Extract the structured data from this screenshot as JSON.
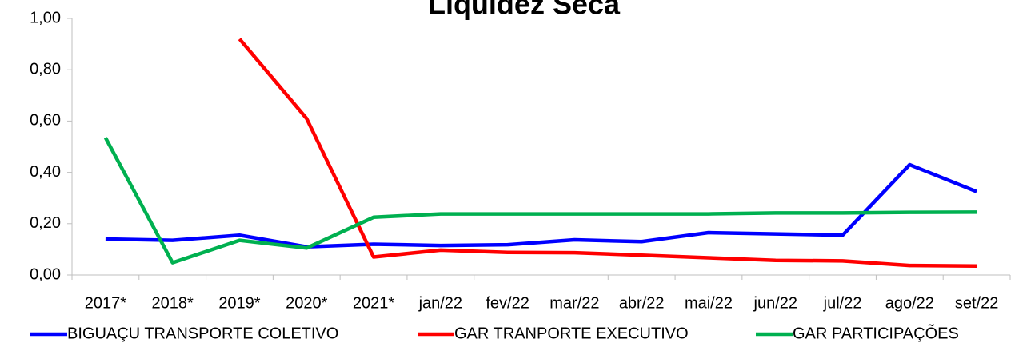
{
  "chart_data": {
    "type": "line",
    "title": "Liquidez Seca",
    "categories": [
      "2017*",
      "2018*",
      "2019*",
      "2020*",
      "2021*",
      "jan/22",
      "fev/22",
      "mar/22",
      "abr/22",
      "mai/22",
      "jun/22",
      "jul/22",
      "ago/22",
      "set/22"
    ],
    "series": [
      {
        "name": "BIGUAÇU TRANSPORTE COLETIVO",
        "color": "#0000ff",
        "values": [
          0.14,
          0.135,
          0.155,
          0.11,
          0.12,
          0.115,
          0.118,
          0.137,
          0.13,
          0.165,
          0.16,
          0.155,
          0.43,
          0.325
        ]
      },
      {
        "name": "GAR TRANPORTE EXECUTIVO",
        "color": "#ff0000",
        "values": [
          null,
          null,
          0.92,
          0.61,
          0.07,
          0.097,
          0.088,
          0.087,
          0.077,
          0.067,
          0.057,
          0.055,
          0.037,
          0.035
        ]
      },
      {
        "name": "GAR PARTICIPAÇÕES",
        "color": "#00b050",
        "values": [
          0.535,
          0.048,
          0.135,
          0.105,
          0.225,
          0.238,
          0.238,
          0.238,
          0.238,
          0.238,
          0.242,
          0.242,
          0.244,
          0.245
        ]
      }
    ],
    "ylim": [
      0,
      1
    ],
    "yticks": [
      {
        "value": 0,
        "label": "0,00"
      },
      {
        "value": 0.2,
        "label": "0,20"
      },
      {
        "value": 0.4,
        "label": "0,40"
      },
      {
        "value": 0.6,
        "label": "0,60"
      },
      {
        "value": 0.8,
        "label": "0,80"
      },
      {
        "value": 1,
        "label": "1,00"
      }
    ],
    "grid": false,
    "legend": "bottom"
  }
}
